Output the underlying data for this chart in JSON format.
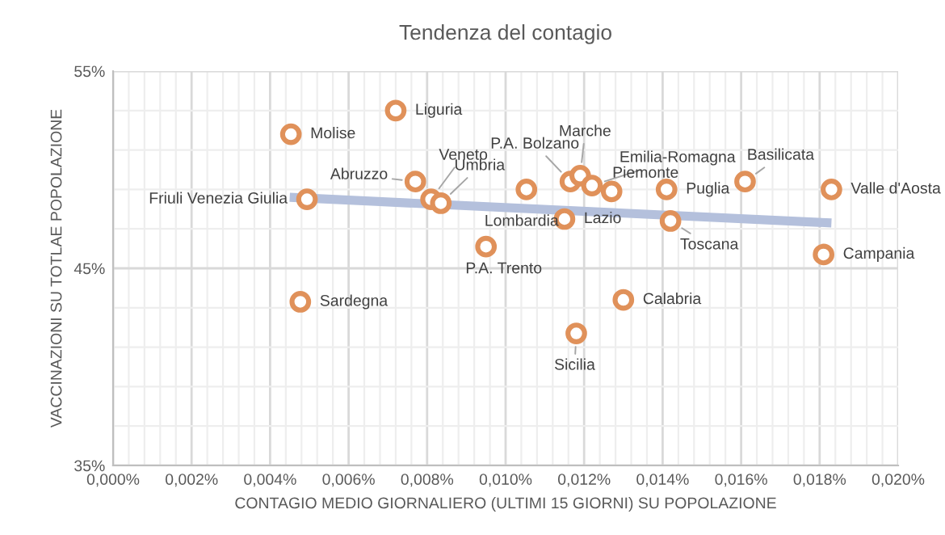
{
  "chart_data": {
    "type": "scatter",
    "title": "Tendenza del contagio",
    "xlabel": "CONTAGIO MEDIO GIORNALIERO (ULTIMI 15 GIORNI) SU POPOLAZIONE",
    "ylabel": "VACCINAZIONI SU TOTLAE POPOLAZIONE",
    "series": [
      {
        "color": "#e0915a",
        "marker": "circle",
        "x": [
          0.0072,
          0.00453,
          0.0077,
          0.0081,
          0.00835,
          0.00494,
          0.01053,
          0.00477,
          0.0095,
          0.01165,
          0.0119,
          0.0122,
          0.0127,
          0.0141,
          0.0161,
          0.0183,
          0.0181,
          0.0115,
          0.0142,
          0.013,
          0.0118
        ],
        "values": [
          53.0,
          51.8,
          49.4,
          48.5,
          48.3,
          48.5,
          49.0,
          43.3,
          46.1,
          49.4,
          49.7,
          49.2,
          48.9,
          49.0,
          49.4,
          49.0,
          45.7,
          47.5,
          47.4,
          43.4,
          41.7
        ]
      },
      {
        "type": "line",
        "color": "#b4c0dc",
        "x": [
          0.0045,
          0.0183
        ],
        "values": [
          48.6,
          47.3
        ]
      }
    ],
    "annotations": [
      {
        "text": "Liguria",
        "x": 0.0072,
        "y": 53.0
      },
      {
        "text": "Molise",
        "x": 0.00453,
        "y": 51.8
      },
      {
        "text": "Abruzzo",
        "x": 0.0077,
        "y": 49.4
      },
      {
        "text": "Veneto",
        "x": 0.0081,
        "y": 48.5
      },
      {
        "text": "Umbria",
        "x": 0.00835,
        "y": 48.3
      },
      {
        "text": "Friuli Venezia Giulia",
        "x": 0.00494,
        "y": 48.5
      },
      {
        "text": "Lombardia",
        "x": 0.01053,
        "y": 49.0
      },
      {
        "text": "Sardegna",
        "x": 0.00477,
        "y": 43.3
      },
      {
        "text": "P.A. Trento",
        "x": 0.0095,
        "y": 46.1
      },
      {
        "text": "P.A. Bolzano",
        "x": 0.01165,
        "y": 49.4
      },
      {
        "text": "Marche",
        "x": 0.0119,
        "y": 49.7
      },
      {
        "text": "Emilia-Romagna",
        "x": 0.0122,
        "y": 49.2
      },
      {
        "text": "Piemonte",
        "x": 0.0127,
        "y": 48.9
      },
      {
        "text": "Puglia",
        "x": 0.0141,
        "y": 49.0
      },
      {
        "text": "Basilicata",
        "x": 0.0161,
        "y": 49.4
      },
      {
        "text": "Valle d'Aosta",
        "x": 0.0183,
        "y": 49.0
      },
      {
        "text": "Campania",
        "x": 0.0181,
        "y": 45.7
      },
      {
        "text": "Lazio",
        "x": 0.0115,
        "y": 47.5
      },
      {
        "text": "Toscana",
        "x": 0.0142,
        "y": 47.4
      },
      {
        "text": "Calabria",
        "x": 0.013,
        "y": 43.4
      },
      {
        "text": "Sicilia",
        "x": 0.0118,
        "y": 41.7
      }
    ],
    "xlim": [
      0,
      0.02
    ],
    "xticks": [
      {
        "value": 0,
        "label": "0,000%"
      },
      {
        "value": 0.002,
        "label": "0,002%"
      },
      {
        "value": 0.004,
        "label": "0,004%"
      },
      {
        "value": 0.006,
        "label": "0,006%"
      },
      {
        "value": 0.008,
        "label": "0,008%"
      },
      {
        "value": 0.01,
        "label": "0,010%"
      },
      {
        "value": 0.012,
        "label": "0,012%"
      },
      {
        "value": 0.014,
        "label": "0,014%"
      },
      {
        "value": 0.016,
        "label": "0,016%"
      },
      {
        "value": 0.018,
        "label": "0,018%"
      },
      {
        "value": 0.02,
        "label": "0,020%"
      }
    ],
    "ylim": [
      35,
      55
    ],
    "yticks": [
      {
        "value": 35,
        "label": "35%"
      },
      {
        "value": 45,
        "label": "45%"
      },
      {
        "value": 55,
        "label": "55%"
      }
    ],
    "grid": true,
    "legend": false
  }
}
